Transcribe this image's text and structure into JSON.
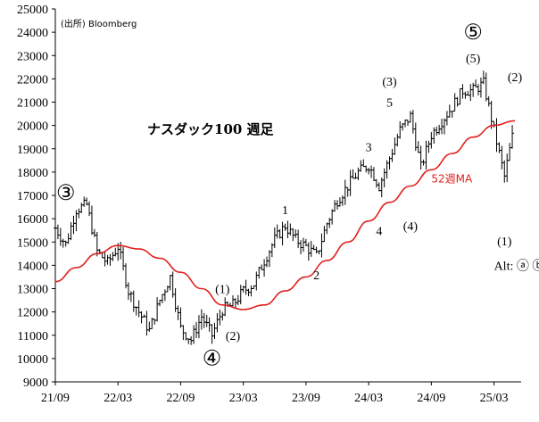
{
  "chart_data": {
    "type": "line",
    "subtype": "weekly-ohlc-bars-with-moving-average",
    "title": "ナスダック100 週足",
    "source": "(出所) Bloomberg",
    "x_tick_labels": [
      "21/09",
      "22/03",
      "22/09",
      "23/03",
      "23/09",
      "24/03",
      "24/09",
      "25/03"
    ],
    "x_range": [
      "2021-09",
      "2025-05"
    ],
    "y_ticks": [
      9000,
      10000,
      11000,
      12000,
      13000,
      14000,
      15000,
      16000,
      17000,
      18000,
      19000,
      20000,
      21000,
      22000,
      23000,
      24000,
      25000
    ],
    "ylim": [
      9000,
      25000
    ],
    "grid": false,
    "price_points": [
      {
        "t": "2021-09",
        "v": 15600
      },
      {
        "t": "2021-10",
        "v": 14900
      },
      {
        "t": "2021-11",
        "v": 16400
      },
      {
        "t": "2021-12",
        "v": 16600
      },
      {
        "t": "2022-01",
        "v": 14600
      },
      {
        "t": "2022-02",
        "v": 14100
      },
      {
        "t": "2022-03",
        "v": 14800
      },
      {
        "t": "2022-04",
        "v": 12900
      },
      {
        "t": "2022-05",
        "v": 12000
      },
      {
        "t": "2022-06",
        "v": 11200
      },
      {
        "t": "2022-07",
        "v": 12500
      },
      {
        "t": "2022-08",
        "v": 13500
      },
      {
        "t": "2022-09",
        "v": 11300
      },
      {
        "t": "2022-10",
        "v": 10800
      },
      {
        "t": "2022-11",
        "v": 11800
      },
      {
        "t": "2022-12",
        "v": 11000
      },
      {
        "t": "2023-01",
        "v": 12100
      },
      {
        "t": "2023-02",
        "v": 12300
      },
      {
        "t": "2023-03",
        "v": 12900
      },
      {
        "t": "2023-04",
        "v": 13200
      },
      {
        "t": "2023-05",
        "v": 14200
      },
      {
        "t": "2023-06",
        "v": 15100
      },
      {
        "t": "2023-07",
        "v": 15700
      },
      {
        "t": "2023-08",
        "v": 15100
      },
      {
        "t": "2023-09",
        "v": 14800
      },
      {
        "t": "2023-10",
        "v": 14400
      },
      {
        "t": "2023-11",
        "v": 15800
      },
      {
        "t": "2023-12",
        "v": 16800
      },
      {
        "t": "2024-01",
        "v": 17400
      },
      {
        "t": "2024-02",
        "v": 18000
      },
      {
        "t": "2024-03",
        "v": 18300
      },
      {
        "t": "2024-04",
        "v": 17400
      },
      {
        "t": "2024-05",
        "v": 18600
      },
      {
        "t": "2024-06",
        "v": 19800
      },
      {
        "t": "2024-07",
        "v": 20400
      },
      {
        "t": "2024-08",
        "v": 18200
      },
      {
        "t": "2024-09",
        "v": 19600
      },
      {
        "t": "2024-10",
        "v": 20200
      },
      {
        "t": "2024-11",
        "v": 20800
      },
      {
        "t": "2024-12",
        "v": 21500
      },
      {
        "t": "2025-01",
        "v": 21500
      },
      {
        "t": "2025-02",
        "v": 21800
      },
      {
        "t": "2025-03",
        "v": 19800
      },
      {
        "t": "2025-04",
        "v": 17800
      },
      {
        "t": "2025-05",
        "v": 20100
      }
    ],
    "series": [
      {
        "name": "52週MA",
        "color": "#e0201c",
        "points": [
          {
            "t": "2021-09",
            "v": 13300
          },
          {
            "t": "2021-11",
            "v": 13900
          },
          {
            "t": "2022-01",
            "v": 14500
          },
          {
            "t": "2022-03",
            "v": 14850
          },
          {
            "t": "2022-05",
            "v": 14700
          },
          {
            "t": "2022-07",
            "v": 14300
          },
          {
            "t": "2022-09",
            "v": 13700
          },
          {
            "t": "2022-11",
            "v": 13000
          },
          {
            "t": "2023-01",
            "v": 12300
          },
          {
            "t": "2023-03",
            "v": 12100
          },
          {
            "t": "2023-05",
            "v": 12300
          },
          {
            "t": "2023-07",
            "v": 12900
          },
          {
            "t": "2023-09",
            "v": 13500
          },
          {
            "t": "2023-11",
            "v": 14200
          },
          {
            "t": "2024-01",
            "v": 15000
          },
          {
            "t": "2024-03",
            "v": 15900
          },
          {
            "t": "2024-05",
            "v": 16700
          },
          {
            "t": "2024-07",
            "v": 17400
          },
          {
            "t": "2024-09",
            "v": 18100
          },
          {
            "t": "2024-11",
            "v": 18800
          },
          {
            "t": "2025-01",
            "v": 19500
          },
          {
            "t": "2025-03",
            "v": 20000
          },
          {
            "t": "2025-05",
            "v": 20200
          }
        ]
      }
    ],
    "annotations": [
      {
        "text": "③",
        "style": "big",
        "t": "2021-10",
        "v": 16800
      },
      {
        "text": "④",
        "style": "big",
        "t": "2022-12",
        "v": 9700
      },
      {
        "text": "⑤",
        "style": "big",
        "t": "2025-01",
        "v": 23700
      },
      {
        "text": "(1)",
        "t": "2023-01",
        "v": 12800
      },
      {
        "text": "(2)",
        "t": "2023-02",
        "v": 10800
      },
      {
        "text": "1",
        "t": "2023-07",
        "v": 16200
      },
      {
        "text": "2",
        "t": "2023-10",
        "v": 13400
      },
      {
        "text": "3",
        "t": "2024-03",
        "v": 18900
      },
      {
        "text": "4",
        "t": "2024-04",
        "v": 15300
      },
      {
        "text": "(3)",
        "t": "2024-05",
        "v": 21700
      },
      {
        "text": "5",
        "t": "2024-05",
        "v": 20800
      },
      {
        "text": "(4)",
        "t": "2024-07",
        "v": 15500
      },
      {
        "text": "(5)",
        "t": "2025-01",
        "v": 22700
      },
      {
        "text": "(1)",
        "t": "2025-04",
        "v": 14850
      },
      {
        "text": "(2)",
        "t": "2025-05",
        "v": 21900
      }
    ],
    "ma_label": {
      "text": "52週MA",
      "t": "2024-09",
      "v": 17550
    },
    "alt_label": {
      "text": "Alt: ⓐ ⓑ",
      "t": "2025-03",
      "v": 13800
    }
  }
}
